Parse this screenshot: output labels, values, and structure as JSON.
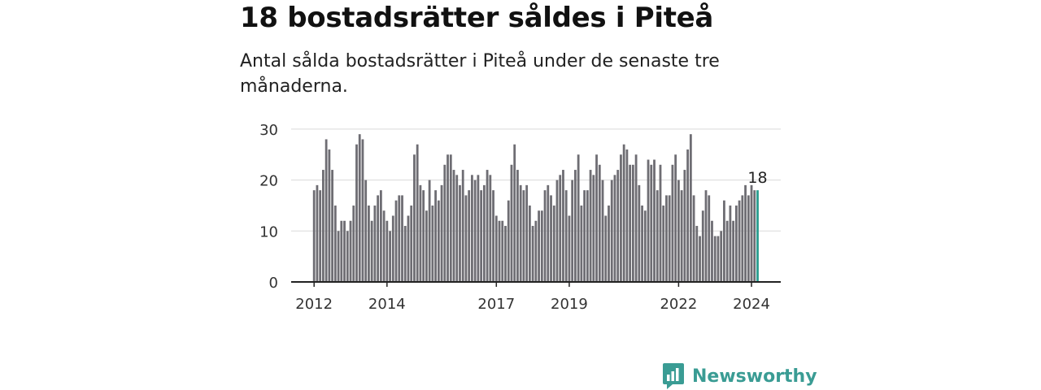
{
  "title": "18 bostadsrätter såldes i Piteå",
  "subtitle": "Antal sålda bostadsrätter i Piteå under de senaste tre månaderna.",
  "brand": {
    "name": "Newsworthy",
    "icon": "newsworthy-logo-icon",
    "color": "#3a9c94"
  },
  "chart_data": {
    "type": "bar",
    "title": "18 bostadsrätter såldes i Piteå",
    "xlabel": "",
    "ylabel": "",
    "ylim": [
      0,
      30
    ],
    "yticks": [
      0,
      10,
      20,
      30
    ],
    "grid": true,
    "bar_color": "#6e6d73",
    "highlight_color": "#2a9d8f",
    "highlight_label": "18",
    "start": "2012-01",
    "x_tick_labels": [
      {
        "label": "2012",
        "index": 0
      },
      {
        "label": "2014",
        "index": 24
      },
      {
        "label": "2017",
        "index": 60
      },
      {
        "label": "2019",
        "index": 84
      },
      {
        "label": "2022",
        "index": 120
      },
      {
        "label": "2024",
        "index": 144
      }
    ],
    "values": [
      18,
      19,
      18,
      22,
      28,
      26,
      22,
      15,
      10,
      12,
      12,
      10,
      12,
      15,
      27,
      29,
      28,
      20,
      15,
      12,
      15,
      17,
      18,
      14,
      12,
      10,
      13,
      16,
      17,
      17,
      11,
      13,
      15,
      25,
      27,
      19,
      18,
      14,
      20,
      15,
      18,
      16,
      19,
      23,
      25,
      25,
      22,
      21,
      19,
      22,
      17,
      18,
      21,
      20,
      21,
      18,
      19,
      22,
      21,
      18,
      13,
      12,
      12,
      11,
      16,
      23,
      27,
      22,
      19,
      18,
      19,
      15,
      11,
      12,
      14,
      14,
      18,
      19,
      17,
      15,
      20,
      21,
      22,
      18,
      13,
      20,
      22,
      25,
      15,
      18,
      18,
      22,
      21,
      25,
      23,
      20,
      13,
      15,
      20,
      21,
      22,
      25,
      27,
      26,
      23,
      23,
      25,
      19,
      15,
      14,
      24,
      23,
      24,
      18,
      23,
      15,
      17,
      17,
      23,
      25,
      20,
      18,
      22,
      26,
      29,
      17,
      11,
      9,
      14,
      18,
      17,
      12,
      9,
      9,
      10,
      16,
      12,
      15,
      12,
      15,
      16,
      17,
      19,
      17,
      19,
      18,
      18
    ]
  }
}
